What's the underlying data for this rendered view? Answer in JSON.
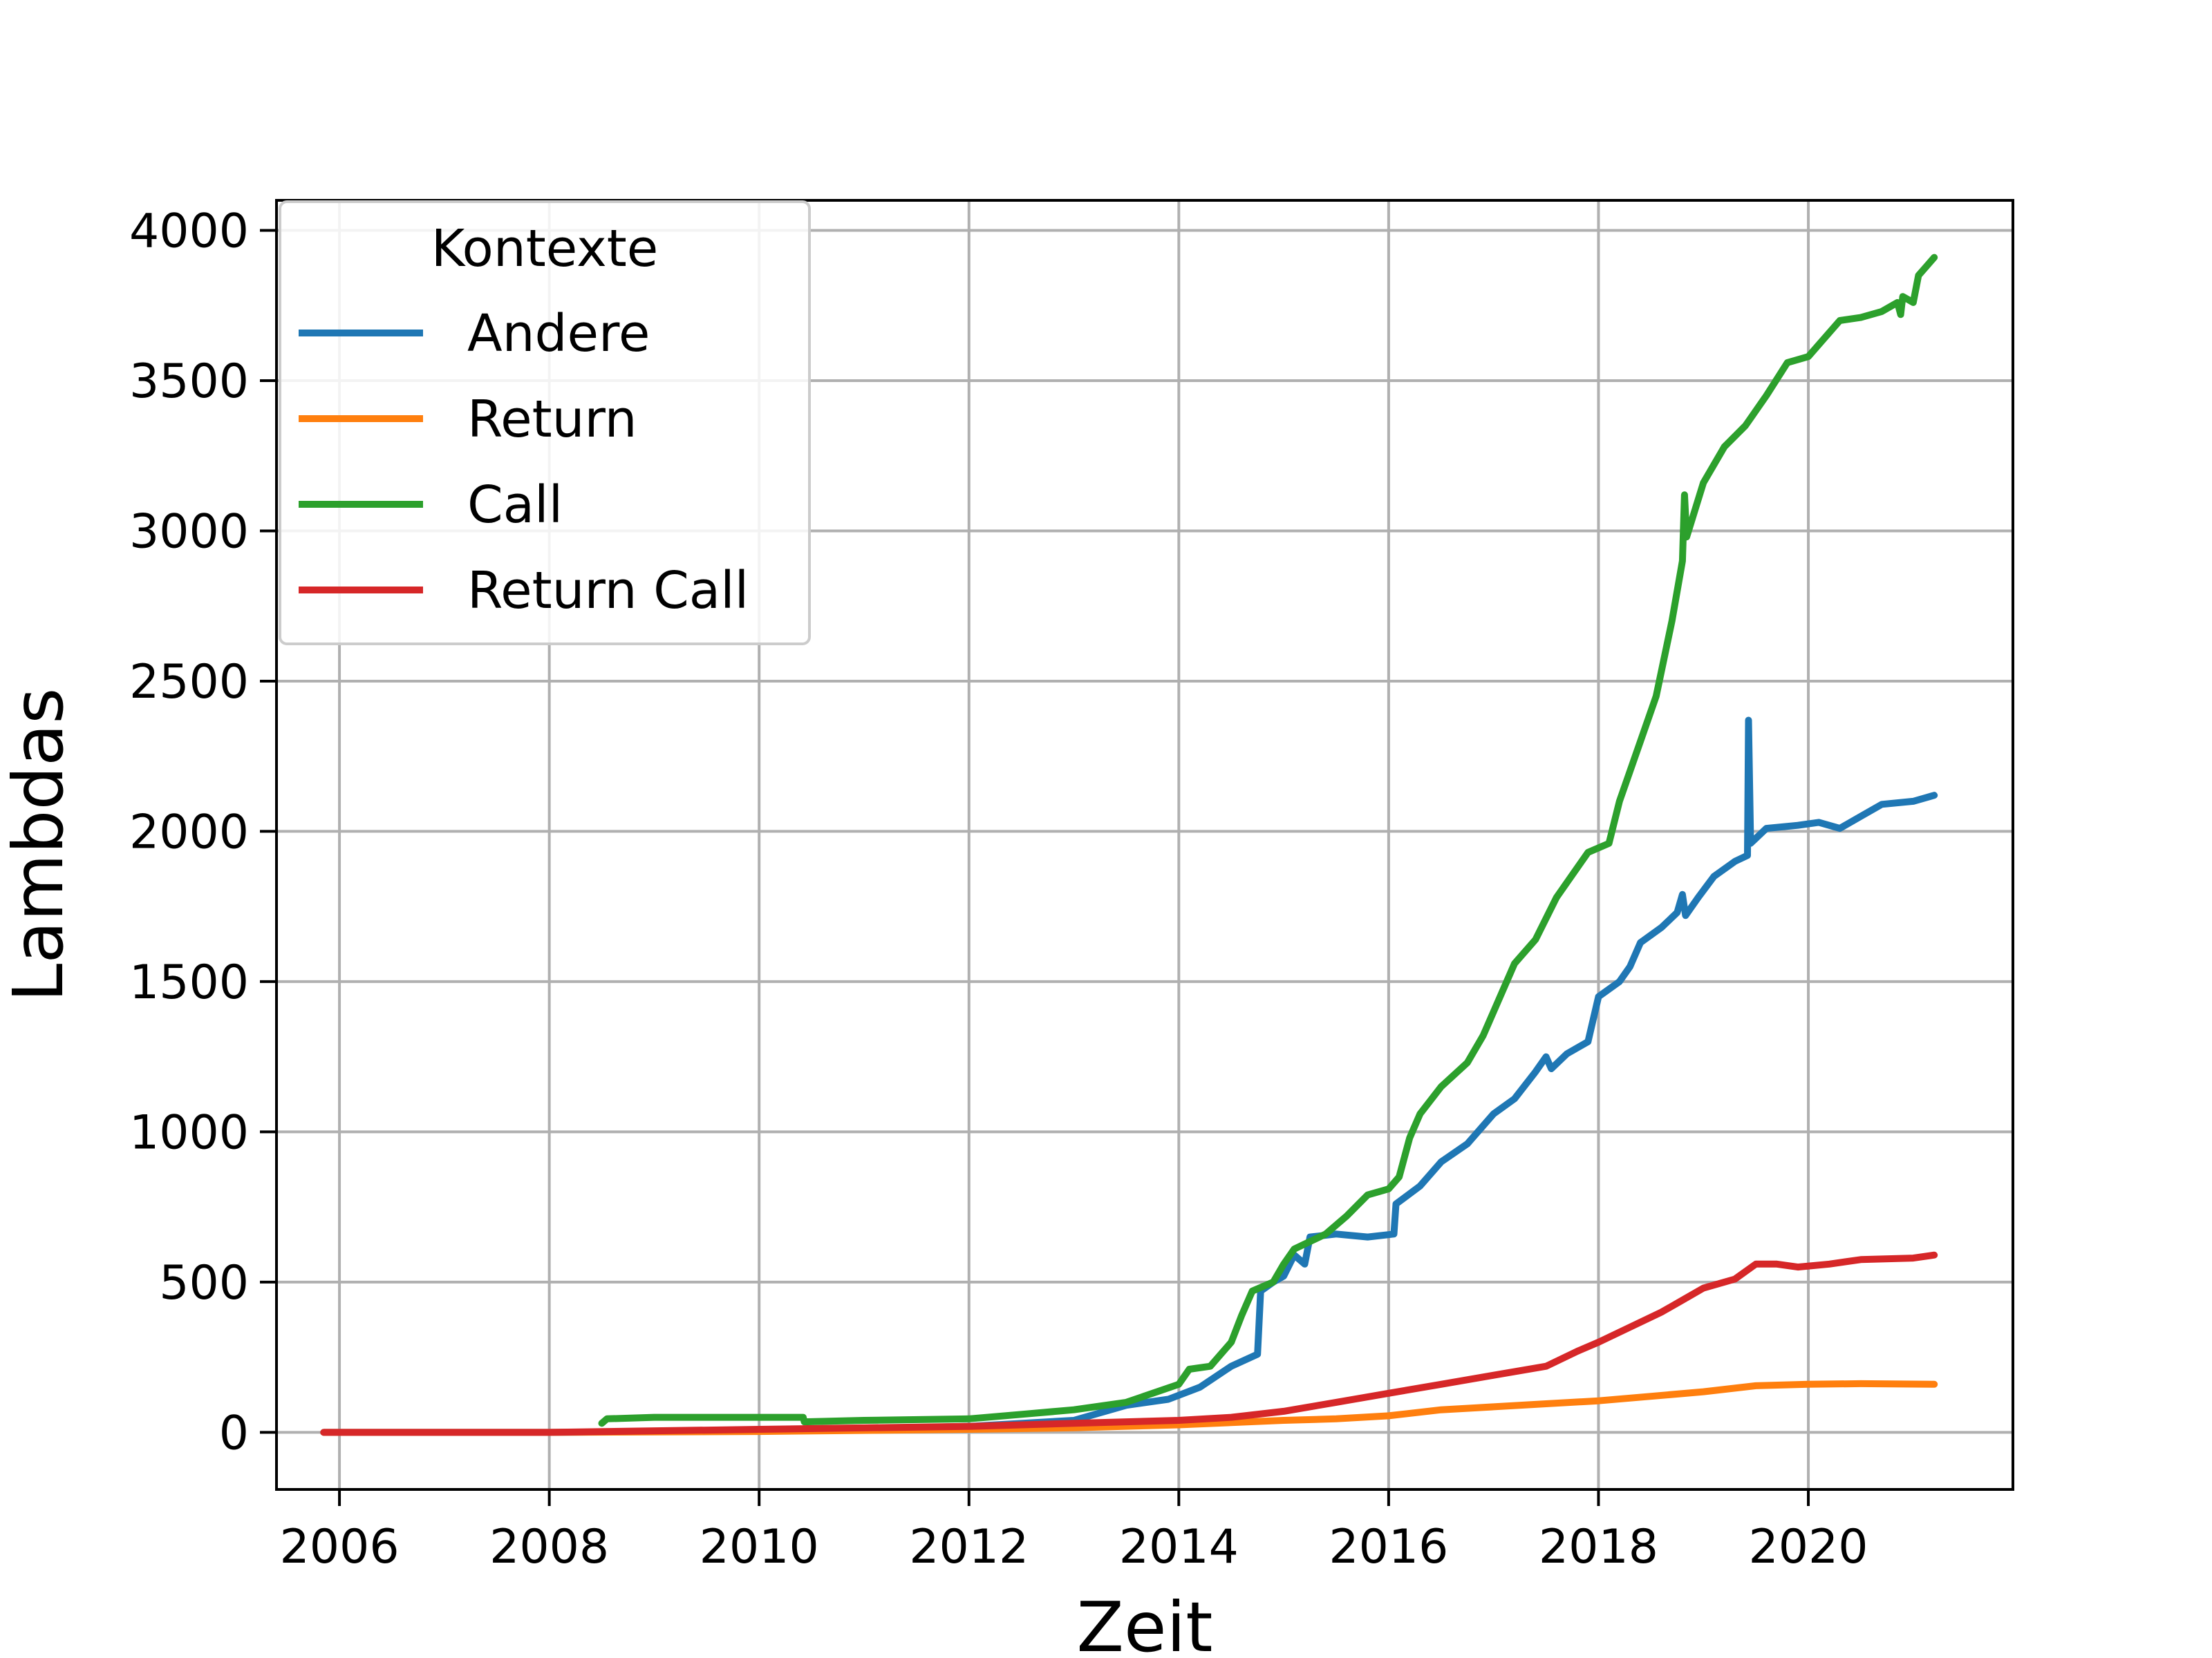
{
  "chart_data": {
    "type": "line",
    "xlabel": "Zeit",
    "ylabel": "Lambdas",
    "xlim": [
      2005.4,
      2021.95
    ],
    "ylim": [
      -190,
      4100
    ],
    "xticks": [
      2006,
      2008,
      2010,
      2012,
      2014,
      2016,
      2018,
      2020
    ],
    "yticks": [
      0,
      500,
      1000,
      1500,
      2000,
      2500,
      3000,
      3500,
      4000
    ],
    "grid": true,
    "legend": {
      "title": "Kontexte",
      "position": "top-left"
    },
    "series": [
      {
        "name": "Andere",
        "color": "#1f77b4",
        "points": [
          [
            2005.85,
            0
          ],
          [
            2008.0,
            0
          ],
          [
            2010.0,
            5
          ],
          [
            2012.0,
            20
          ],
          [
            2013.0,
            40
          ],
          [
            2013.5,
            90
          ],
          [
            2013.9,
            110
          ],
          [
            2014.2,
            150
          ],
          [
            2014.5,
            220
          ],
          [
            2014.75,
            260
          ],
          [
            2014.78,
            470
          ],
          [
            2014.9,
            500
          ],
          [
            2015.0,
            520
          ],
          [
            2015.1,
            590
          ],
          [
            2015.2,
            560
          ],
          [
            2015.25,
            650
          ],
          [
            2015.5,
            660
          ],
          [
            2015.8,
            650
          ],
          [
            2016.05,
            660
          ],
          [
            2016.07,
            760
          ],
          [
            2016.3,
            820
          ],
          [
            2016.5,
            900
          ],
          [
            2016.75,
            960
          ],
          [
            2017.0,
            1060
          ],
          [
            2017.2,
            1110
          ],
          [
            2017.4,
            1200
          ],
          [
            2017.5,
            1250
          ],
          [
            2017.55,
            1210
          ],
          [
            2017.7,
            1260
          ],
          [
            2017.9,
            1300
          ],
          [
            2018.0,
            1450
          ],
          [
            2018.2,
            1500
          ],
          [
            2018.3,
            1550
          ],
          [
            2018.4,
            1630
          ],
          [
            2018.6,
            1680
          ],
          [
            2018.75,
            1730
          ],
          [
            2018.8,
            1790
          ],
          [
            2018.83,
            1720
          ],
          [
            2018.95,
            1780
          ],
          [
            2019.1,
            1850
          ],
          [
            2019.3,
            1900
          ],
          [
            2019.42,
            1920
          ],
          [
            2019.43,
            2370
          ],
          [
            2019.45,
            1960
          ],
          [
            2019.6,
            2010
          ],
          [
            2019.9,
            2020
          ],
          [
            2020.1,
            2030
          ],
          [
            2020.3,
            2010
          ],
          [
            2020.5,
            2050
          ],
          [
            2020.7,
            2090
          ],
          [
            2021.0,
            2100
          ],
          [
            2021.2,
            2120
          ]
        ]
      },
      {
        "name": "Return",
        "color": "#ff7f0e",
        "points": [
          [
            2005.85,
            0
          ],
          [
            2008.0,
            0
          ],
          [
            2010.0,
            3
          ],
          [
            2012.0,
            10
          ],
          [
            2013.0,
            15
          ],
          [
            2014.0,
            25
          ],
          [
            2015.0,
            40
          ],
          [
            2015.5,
            45
          ],
          [
            2016.0,
            55
          ],
          [
            2016.5,
            75
          ],
          [
            2017.0,
            85
          ],
          [
            2017.5,
            95
          ],
          [
            2018.0,
            105
          ],
          [
            2018.5,
            120
          ],
          [
            2019.0,
            135
          ],
          [
            2019.5,
            155
          ],
          [
            2020.0,
            160
          ],
          [
            2020.5,
            162
          ],
          [
            2021.2,
            160
          ]
        ]
      },
      {
        "name": "Call",
        "color": "#2ca02c",
        "points": [
          [
            2008.5,
            30
          ],
          [
            2008.55,
            45
          ],
          [
            2009.0,
            50
          ],
          [
            2010.0,
            50
          ],
          [
            2010.42,
            50
          ],
          [
            2010.43,
            35
          ],
          [
            2011.0,
            40
          ],
          [
            2012.0,
            45
          ],
          [
            2012.5,
            60
          ],
          [
            2013.0,
            75
          ],
          [
            2013.5,
            100
          ],
          [
            2014.0,
            160
          ],
          [
            2014.1,
            210
          ],
          [
            2014.3,
            220
          ],
          [
            2014.5,
            300
          ],
          [
            2014.6,
            390
          ],
          [
            2014.7,
            470
          ],
          [
            2014.9,
            500
          ],
          [
            2015.0,
            560
          ],
          [
            2015.1,
            610
          ],
          [
            2015.4,
            660
          ],
          [
            2015.6,
            720
          ],
          [
            2015.8,
            790
          ],
          [
            2016.0,
            810
          ],
          [
            2016.1,
            850
          ],
          [
            2016.2,
            980
          ],
          [
            2016.3,
            1060
          ],
          [
            2016.5,
            1150
          ],
          [
            2016.75,
            1230
          ],
          [
            2016.9,
            1320
          ],
          [
            2017.0,
            1400
          ],
          [
            2017.2,
            1560
          ],
          [
            2017.4,
            1640
          ],
          [
            2017.6,
            1780
          ],
          [
            2017.8,
            1880
          ],
          [
            2017.9,
            1930
          ],
          [
            2018.1,
            1960
          ],
          [
            2018.2,
            2100
          ],
          [
            2018.4,
            2300
          ],
          [
            2018.55,
            2450
          ],
          [
            2018.7,
            2700
          ],
          [
            2018.8,
            2900
          ],
          [
            2018.82,
            3120
          ],
          [
            2018.84,
            2980
          ],
          [
            2019.0,
            3160
          ],
          [
            2019.2,
            3280
          ],
          [
            2019.4,
            3350
          ],
          [
            2019.6,
            3450
          ],
          [
            2019.8,
            3560
          ],
          [
            2020.0,
            3580
          ],
          [
            2020.3,
            3700
          ],
          [
            2020.5,
            3710
          ],
          [
            2020.7,
            3730
          ],
          [
            2020.85,
            3760
          ],
          [
            2020.88,
            3720
          ],
          [
            2020.9,
            3780
          ],
          [
            2021.0,
            3760
          ],
          [
            2021.05,
            3850
          ],
          [
            2021.2,
            3910
          ]
        ]
      },
      {
        "name": "Return Call",
        "color": "#d62728",
        "points": [
          [
            2005.85,
            0
          ],
          [
            2008.0,
            0
          ],
          [
            2010.0,
            10
          ],
          [
            2012.0,
            20
          ],
          [
            2013.0,
            30
          ],
          [
            2014.0,
            40
          ],
          [
            2014.5,
            50
          ],
          [
            2015.0,
            70
          ],
          [
            2015.5,
            100
          ],
          [
            2016.0,
            130
          ],
          [
            2016.5,
            160
          ],
          [
            2017.0,
            190
          ],
          [
            2017.5,
            220
          ],
          [
            2017.8,
            270
          ],
          [
            2018.0,
            300
          ],
          [
            2018.3,
            350
          ],
          [
            2018.6,
            400
          ],
          [
            2018.8,
            440
          ],
          [
            2019.0,
            480
          ],
          [
            2019.3,
            510
          ],
          [
            2019.5,
            560
          ],
          [
            2019.7,
            560
          ],
          [
            2019.9,
            550
          ],
          [
            2020.2,
            560
          ],
          [
            2020.5,
            575
          ],
          [
            2021.0,
            580
          ],
          [
            2021.2,
            590
          ]
        ]
      }
    ]
  }
}
